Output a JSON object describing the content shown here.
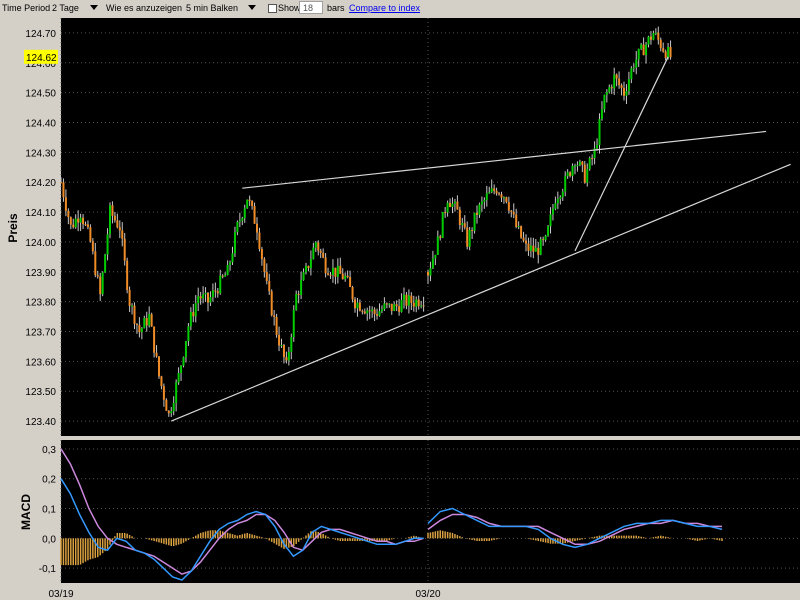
{
  "toolbar": {
    "time_period_label": "Time Period",
    "time_period_value": "2 Tage",
    "display_label": "Wie es anzuzeigen ist",
    "display_value": "5 min Balken",
    "show_label": "Show",
    "show_value": "18",
    "bars_label": "bars",
    "compare_link": "Compare to index"
  },
  "colors": {
    "background": "#000000",
    "up_candle": "#00cc00",
    "down_candle": "#f08c28",
    "wick": "#c8c8c8",
    "trendline": "#d8d8d8",
    "macd_line": "#3399ff",
    "signal_line": "#cc88dd",
    "histogram": "#d8a040",
    "highlight": "#ffff00"
  },
  "chart_data": [
    {
      "type": "candlestick",
      "ylabel": "Preis",
      "ylim": [
        123.35,
        124.75
      ],
      "yticks": [
        "123.40",
        "123.50",
        "123.60",
        "123.70",
        "123.80",
        "123.90",
        "124.00",
        "124.10",
        "124.20",
        "124.30",
        "124.40",
        "124.50",
        "124.60",
        "124.70"
      ],
      "x_labels": [
        "03/19",
        "03/20"
      ],
      "current_price": "124.62",
      "grid": true,
      "sessions": [
        {
          "date": "03/19",
          "close_path": [
            [
              0,
              124.2
            ],
            [
              4,
              124.05
            ],
            [
              8,
              124.1
            ],
            [
              12,
              124.0
            ],
            [
              16,
              123.82
            ],
            [
              20,
              124.1
            ],
            [
              24,
              124.05
            ],
            [
              28,
              123.8
            ],
            [
              32,
              123.7
            ],
            [
              36,
              123.75
            ],
            [
              40,
              123.55
            ],
            [
              44,
              123.42
            ],
            [
              48,
              123.55
            ],
            [
              52,
              123.72
            ],
            [
              56,
              123.82
            ],
            [
              60,
              123.8
            ],
            [
              64,
              123.85
            ],
            [
              68,
              123.9
            ],
            [
              72,
              124.05
            ],
            [
              76,
              124.15
            ],
            [
              80,
              124.05
            ],
            [
              84,
              123.85
            ],
            [
              88,
              123.7
            ],
            [
              92,
              123.58
            ],
            [
              96,
              123.82
            ],
            [
              100,
              123.9
            ],
            [
              104,
              124.0
            ],
            [
              108,
              123.92
            ],
            [
              112,
              123.9
            ],
            [
              116,
              123.88
            ],
            [
              120,
              123.8
            ],
            [
              124,
              123.78
            ],
            [
              128,
              123.76
            ],
            [
              132,
              123.78
            ],
            [
              136,
              123.78
            ],
            [
              140,
              123.8
            ],
            [
              144,
              123.8
            ],
            [
              148,
              123.81
            ]
          ]
        },
        {
          "date": "03/20",
          "close_path": [
            [
              0,
              123.9
            ],
            [
              4,
              124.0
            ],
            [
              8,
              124.15
            ],
            [
              12,
              124.1
            ],
            [
              16,
              124.0
            ],
            [
              20,
              124.1
            ],
            [
              24,
              124.15
            ],
            [
              28,
              124.18
            ],
            [
              32,
              124.15
            ],
            [
              36,
              124.05
            ],
            [
              40,
              123.98
            ],
            [
              44,
              123.97
            ],
            [
              48,
              124.0
            ],
            [
              52,
              124.15
            ],
            [
              56,
              124.2
            ],
            [
              60,
              124.28
            ],
            [
              64,
              124.22
            ],
            [
              68,
              124.3
            ],
            [
              72,
              124.48
            ],
            [
              76,
              124.55
            ],
            [
              80,
              124.5
            ],
            [
              84,
              124.6
            ],
            [
              88,
              124.65
            ],
            [
              92,
              124.7
            ],
            [
              96,
              124.65
            ],
            [
              99,
              124.62
            ]
          ]
        }
      ],
      "trendlines": [
        {
          "from": {
            "session": 0,
            "bar": 45,
            "price": 123.4
          },
          "to": {
            "session": 1,
            "bar": 148,
            "price": 124.26
          }
        },
        {
          "from": {
            "session": 0,
            "bar": 74,
            "price": 124.18
          },
          "to": {
            "session": 1,
            "bar": 138,
            "price": 124.37
          }
        },
        {
          "from": {
            "session": 1,
            "bar": 60,
            "price": 123.97
          },
          "to": {
            "session": 1,
            "bar": 98,
            "price": 124.62
          }
        }
      ]
    },
    {
      "type": "line",
      "ylabel": "MACD",
      "ylim": [
        -0.15,
        0.33
      ],
      "yticks": [
        "-0,1",
        "0,0",
        "0,1",
        "0,2",
        "0,3"
      ],
      "series": [
        {
          "values": [
            0.2,
            0.15,
            0.08,
            0.02,
            -0.03,
            -0.04,
            0.0,
            -0.01,
            -0.04,
            -0.05,
            -0.07,
            -0.1,
            -0.13,
            -0.14,
            -0.11,
            -0.06,
            -0.01,
            0.03,
            0.05,
            0.06,
            0.08,
            0.09,
            0.08,
            0.04,
            -0.02,
            -0.06,
            -0.04,
            0.02,
            0.04,
            0.03,
            0.02,
            0.01,
            0.0,
            -0.01,
            -0.02,
            -0.02,
            -0.02,
            -0.01,
            0.0,
            0.0,
            null,
            0.05,
            0.09,
            0.1,
            0.08,
            0.06,
            0.04,
            0.04,
            0.04,
            0.04,
            0.03,
            0.0,
            -0.02,
            -0.03,
            -0.02,
            0.0,
            0.02,
            0.04,
            0.05,
            0.05,
            0.06,
            0.06,
            0.05,
            0.04,
            0.04,
            0.03
          ]
        },
        {
          "values": [
            0.3,
            0.25,
            0.18,
            0.1,
            0.04,
            0.0,
            -0.02,
            -0.03,
            -0.04,
            -0.05,
            -0.06,
            -0.08,
            -0.1,
            -0.12,
            -0.11,
            -0.08,
            -0.04,
            0.0,
            0.03,
            0.05,
            0.06,
            0.08,
            0.08,
            0.06,
            0.02,
            -0.03,
            -0.04,
            -0.01,
            0.02,
            0.03,
            0.03,
            0.02,
            0.01,
            0.0,
            -0.01,
            -0.01,
            -0.02,
            -0.01,
            -0.01,
            0.0,
            null,
            0.03,
            0.06,
            0.08,
            0.08,
            0.07,
            0.05,
            0.04,
            0.04,
            0.04,
            0.04,
            0.02,
            0.0,
            -0.02,
            -0.02,
            -0.01,
            0.01,
            0.03,
            0.04,
            0.05,
            0.05,
            0.06,
            0.05,
            0.05,
            0.04,
            0.04
          ]
        }
      ]
    }
  ]
}
